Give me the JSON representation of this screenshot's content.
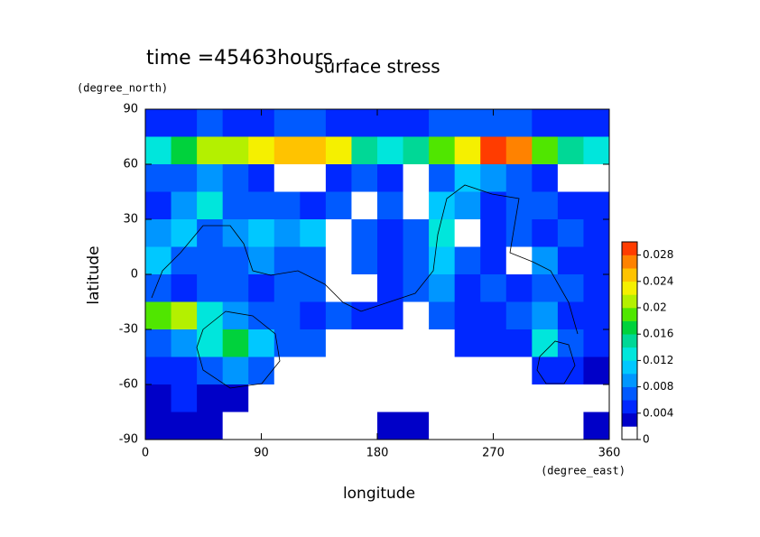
{
  "chart_data": {
    "type": "heatmap",
    "title": "surface stress",
    "subtitle": "time =45463hours",
    "x_label": "longitude",
    "x_unit": "(degree_east)",
    "y_label": "latitude",
    "y_unit": "(degree_north)",
    "xlim": [
      0,
      360
    ],
    "ylim": [
      -90,
      90
    ],
    "xticks": [
      0,
      90,
      180,
      270,
      360
    ],
    "yticks": [
      -90,
      -60,
      -30,
      0,
      30,
      60,
      90
    ],
    "x": [
      10,
      30,
      50,
      70,
      90,
      110,
      130,
      150,
      170,
      190,
      210,
      230,
      250,
      270,
      290,
      310,
      330,
      350
    ],
    "y": [
      82.5,
      67.5,
      52.5,
      37.5,
      22.5,
      7.5,
      -7.5,
      -22.5,
      -37.5,
      -52.5,
      -67.5,
      -82.5
    ],
    "z": [
      [
        0.005,
        0.005,
        0.006,
        0.005,
        0.005,
        0.006,
        0.006,
        0.005,
        0.005,
        0.005,
        0.005,
        0.006,
        0.007,
        0.007,
        0.006,
        0.005,
        0.005,
        0.005
      ],
      [
        0.012,
        0.016,
        0.02,
        0.021,
        0.022,
        0.024,
        0.025,
        0.022,
        0.014,
        0.012,
        0.014,
        0.018,
        0.022,
        0.028,
        0.027,
        0.018,
        0.014,
        0.012
      ],
      [
        0.006,
        0.007,
        0.008,
        0.006,
        0.005,
        0.001,
        0.001,
        0.005,
        0.006,
        0.005,
        0.001,
        0.006,
        0.01,
        0.008,
        0.006,
        0.004,
        0.001,
        0.001
      ],
      [
        0.005,
        0.008,
        0.012,
        0.007,
        0.006,
        0.007,
        0.005,
        0.006,
        0.001,
        0.006,
        0.001,
        0.01,
        0.008,
        0.005,
        0.006,
        0.007,
        0.005,
        0.004
      ],
      [
        0.008,
        0.01,
        0.006,
        0.009,
        0.01,
        0.008,
        0.011,
        0.001,
        0.006,
        0.005,
        0.006,
        0.013,
        0.001,
        0.005,
        0.006,
        0.005,
        0.006,
        0.004
      ],
      [
        0.01,
        0.007,
        0.006,
        0.006,
        0.008,
        0.007,
        0.006,
        0.001,
        0.006,
        0.005,
        0.006,
        0.011,
        0.006,
        0.004,
        0.001,
        0.008,
        0.005,
        0.004
      ],
      [
        0.006,
        0.005,
        0.007,
        0.006,
        0.005,
        0.006,
        0.006,
        0.001,
        0.001,
        0.005,
        0.006,
        0.009,
        0.004,
        0.006,
        0.005,
        0.007,
        0.006,
        0.004
      ],
      [
        0.018,
        0.02,
        0.012,
        0.008,
        0.007,
        0.006,
        0.005,
        0.006,
        0.005,
        0.005,
        0.001,
        0.007,
        0.005,
        0.004,
        0.006,
        0.009,
        0.005,
        0.004
      ],
      [
        0.006,
        0.008,
        0.012,
        0.016,
        0.01,
        0.006,
        0.006,
        0.001,
        0.001,
        0.001,
        0.001,
        0.001,
        0.005,
        0.004,
        0.004,
        0.012,
        0.006,
        0.004
      ],
      [
        0.004,
        0.005,
        0.007,
        0.009,
        0.006,
        0.001,
        0.001,
        0.001,
        0.001,
        0.001,
        0.001,
        0.001,
        0.001,
        0.001,
        0.001,
        0.005,
        0.005,
        0.003
      ],
      [
        0.003,
        0.004,
        0.003,
        0.003,
        0.001,
        0.001,
        0.001,
        0.001,
        0.001,
        0.001,
        0.001,
        0.001,
        0.001,
        0.001,
        0.001,
        0.001,
        0.001,
        0.001
      ],
      [
        0.003,
        0.002,
        0.002,
        0.001,
        0.001,
        0.001,
        0.001,
        0.001,
        0.001,
        0.003,
        0.003,
        0.001,
        0.001,
        0.001,
        0.001,
        0.001,
        0.001,
        0.003
      ]
    ],
    "colorbar": {
      "levels": [
        0,
        0.002,
        0.004,
        0.006,
        0.008,
        0.01,
        0.012,
        0.014,
        0.016,
        0.018,
        0.02,
        0.022,
        0.024,
        0.026,
        0.028,
        0.03
      ],
      "colors": [
        "#ffffff",
        "#0000c8",
        "#0028ff",
        "#005aff",
        "#0096ff",
        "#00c8ff",
        "#00e6dc",
        "#00d896",
        "#00d23c",
        "#50e600",
        "#b4f000",
        "#f5f000",
        "#ffc300",
        "#ff8200",
        "#ff3c00"
      ],
      "ticks": [
        0,
        0.004,
        0.008,
        0.012,
        0.016,
        0.02,
        0.024,
        0.028
      ]
    }
  }
}
